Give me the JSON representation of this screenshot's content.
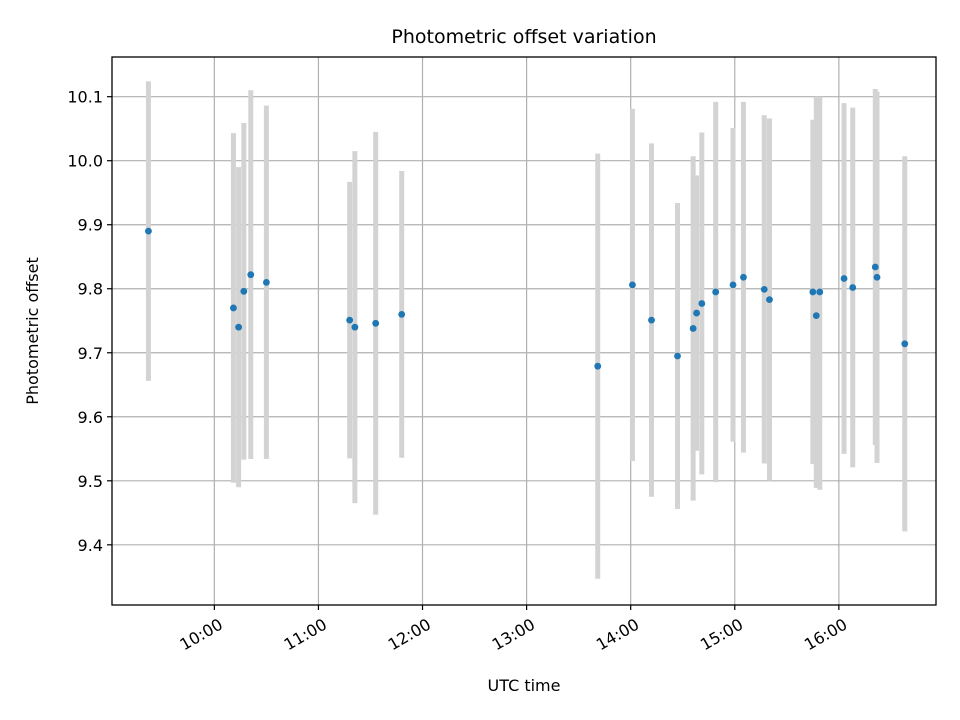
{
  "chart_data": {
    "type": "scatter",
    "title": "Photometric offset variation",
    "xlabel": "UTC time",
    "ylabel": "Photometric offset",
    "xlim": [
      "09:01",
      "16:56"
    ],
    "ylim": [
      9.306,
      10.162
    ],
    "grid": true,
    "x_ticks": [
      "10:00",
      "11:00",
      "12:00",
      "13:00",
      "14:00",
      "15:00",
      "16:00"
    ],
    "y_ticks": [
      9.4,
      9.5,
      9.6,
      9.7,
      9.8,
      9.9,
      10.0,
      10.1
    ],
    "colors": {
      "points": "#1f77b4",
      "errorbars": "#d3d3d3"
    },
    "points": [
      {
        "x": "09:22",
        "y": 9.89,
        "low": 9.656,
        "high": 10.124
      },
      {
        "x": "10:11",
        "y": 9.77,
        "low": 9.497,
        "high": 10.043
      },
      {
        "x": "10:14",
        "y": 9.74,
        "low": 9.49,
        "high": 9.99
      },
      {
        "x": "10:17",
        "y": 9.796,
        "low": 9.533,
        "high": 10.059
      },
      {
        "x": "10:21",
        "y": 9.822,
        "low": 9.534,
        "high": 10.11
      },
      {
        "x": "10:30",
        "y": 9.81,
        "low": 9.534,
        "high": 10.086
      },
      {
        "x": "11:18",
        "y": 9.751,
        "low": 9.535,
        "high": 9.967
      },
      {
        "x": "11:21",
        "y": 9.74,
        "low": 9.465,
        "high": 10.015
      },
      {
        "x": "11:33",
        "y": 9.746,
        "low": 9.447,
        "high": 10.045
      },
      {
        "x": "11:48",
        "y": 9.76,
        "low": 9.536,
        "high": 9.984
      },
      {
        "x": "13:41",
        "y": 9.679,
        "low": 9.347,
        "high": 10.011
      },
      {
        "x": "14:01",
        "y": 9.806,
        "low": 9.531,
        "high": 10.081
      },
      {
        "x": "14:12",
        "y": 9.751,
        "low": 9.475,
        "high": 10.027
      },
      {
        "x": "14:27",
        "y": 9.695,
        "low": 9.456,
        "high": 9.934
      },
      {
        "x": "14:36",
        "y": 9.738,
        "low": 9.469,
        "high": 10.007
      },
      {
        "x": "14:38",
        "y": 9.762,
        "low": 9.547,
        "high": 9.977
      },
      {
        "x": "14:41",
        "y": 9.777,
        "low": 9.51,
        "high": 10.044
      },
      {
        "x": "14:49",
        "y": 9.795,
        "low": 9.498,
        "high": 10.092
      },
      {
        "x": "14:59",
        "y": 9.806,
        "low": 9.561,
        "high": 10.051
      },
      {
        "x": "15:05",
        "y": 9.818,
        "low": 9.544,
        "high": 10.092
      },
      {
        "x": "15:17",
        "y": 9.799,
        "low": 9.527,
        "high": 10.071
      },
      {
        "x": "15:20",
        "y": 9.783,
        "low": 9.5,
        "high": 10.066
      },
      {
        "x": "15:45",
        "y": 9.795,
        "low": 9.526,
        "high": 10.064
      },
      {
        "x": "15:47",
        "y": 9.758,
        "low": 9.489,
        "high": 10.1
      },
      {
        "x": "15:49",
        "y": 9.795,
        "low": 9.486,
        "high": 10.1
      },
      {
        "x": "16:03",
        "y": 9.816,
        "low": 9.542,
        "high": 10.09
      },
      {
        "x": "16:08",
        "y": 9.802,
        "low": 9.521,
        "high": 10.083
      },
      {
        "x": "16:21",
        "y": 9.834,
        "low": 9.556,
        "high": 10.112
      },
      {
        "x": "16:22",
        "y": 9.818,
        "low": 9.528,
        "high": 10.108
      },
      {
        "x": "16:38",
        "y": 9.714,
        "low": 9.421,
        "high": 10.007
      }
    ]
  }
}
